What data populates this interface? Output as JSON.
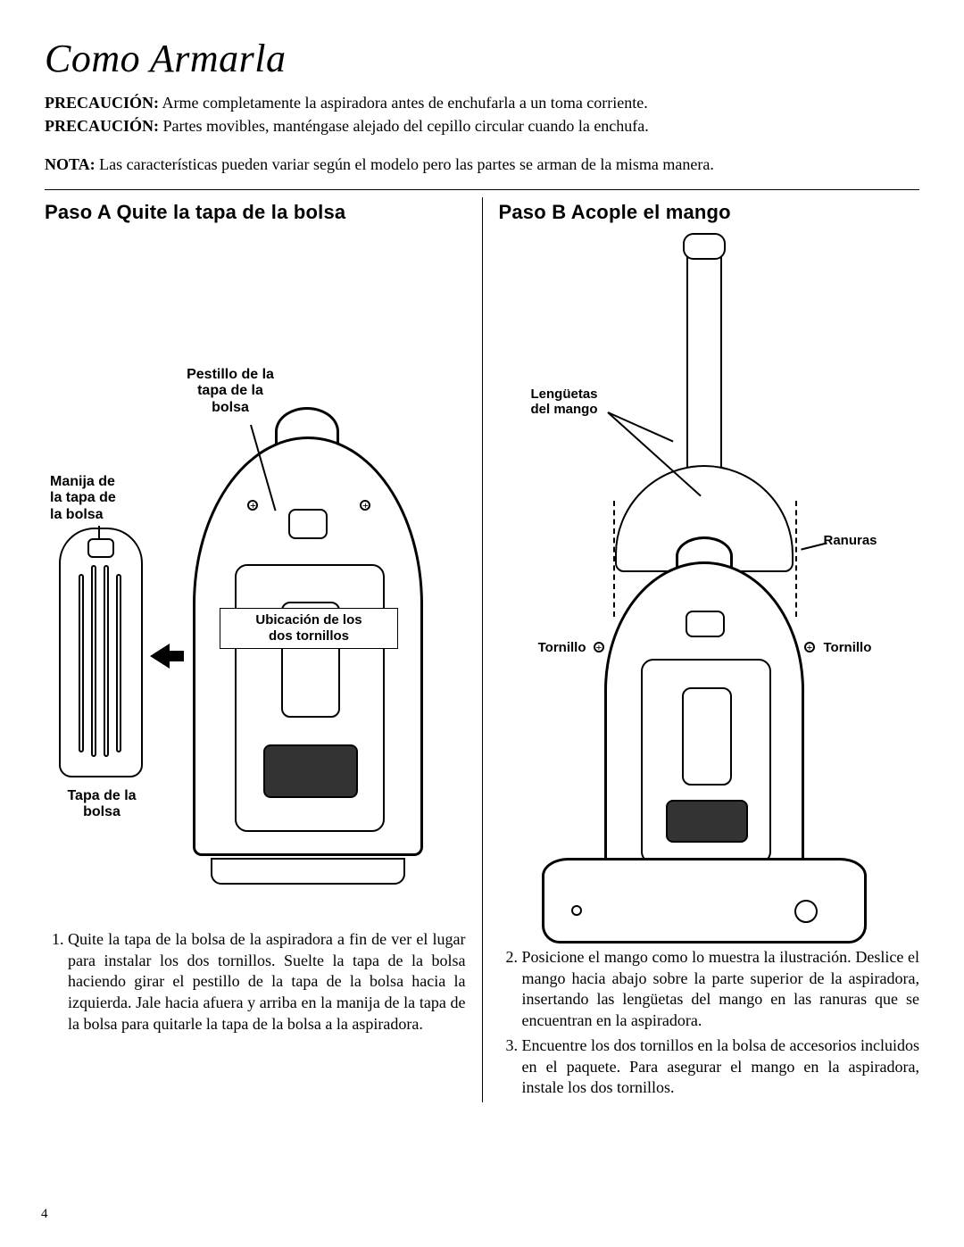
{
  "title": "Como Armarla",
  "precautions": [
    {
      "label": "PRECAUCIÓN:",
      "text": "Arme completamente la aspiradora antes de enchufarla a un toma corriente."
    },
    {
      "label": "PRECAUCIÓN:",
      "text": "Partes movibles, manténgase alejado del cepillo circular cuando la enchufa."
    }
  ],
  "nota": {
    "label": "NOTA:",
    "text": "Las características pueden variar según el modelo pero las partes se arman de la misma manera."
  },
  "stepA": {
    "heading": "Paso A  Quite la tapa de la bolsa",
    "labels": {
      "pestillo": "Pestillo de la\ntapa de la\nbolsa",
      "manija": "Manija de\nla tapa de\nla bolsa",
      "ubicacion": "Ubicación de los\ndos tornillos",
      "tapa": "Tapa de la\nbolsa"
    },
    "instruction_num": "1.",
    "instruction": "Quite la tapa de la bolsa de la aspiradora a fin de ver el lugar para instalar los dos tornillos. Suelte la tapa de la bolsa haciendo girar el pestillo de la tapa de la bolsa hacia la izquierda. Jale hacia afuera y arriba en la manija de la tapa de la bolsa para quitarle la tapa de la bolsa a la aspiradora."
  },
  "stepB": {
    "heading": "Paso B  Acople el mango",
    "labels": {
      "lenguetas": "Lengüetas\ndel mango",
      "ranuras": "Ranuras",
      "tornillo_l": "Tornillo",
      "tornillo_r": "Tornillo"
    },
    "instructions": [
      {
        "num": "2.",
        "text": "Posicione el mango como lo muestra la ilustración. Deslice el mango hacia abajo sobre la parte superior de la aspiradora, insertando las lengüetas del mango en las ranuras que se encuentran en la aspiradora."
      },
      {
        "num": "3.",
        "text": "Encuentre los dos tornillos en la bolsa de accesorios incluidos en el paquete. Para asegurar el mango en la aspiradora, instale los dos tornillos."
      }
    ]
  },
  "page_number": "4"
}
